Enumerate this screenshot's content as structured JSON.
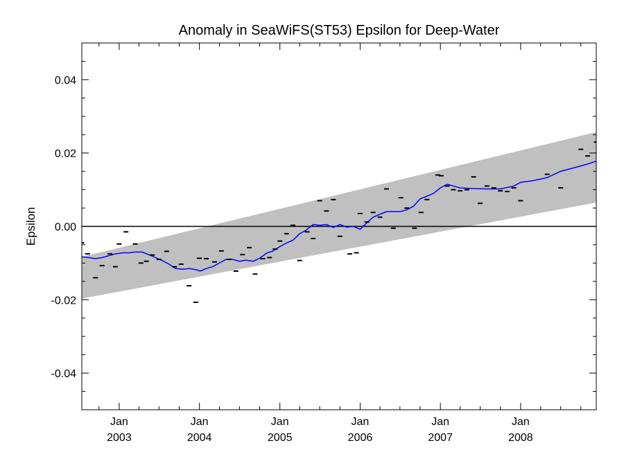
{
  "chart_data": {
    "type": "scatter",
    "title": "Anomaly in SeaWiFS(ST53) Epsilon for Deep-Water",
    "xlabel": "",
    "ylabel": "Epsilon",
    "xlim": [
      "2002-07-15",
      "2008-12-10"
    ],
    "ylim": [
      -0.05,
      0.05
    ],
    "y_ticks": [
      -0.04,
      -0.02,
      0.0,
      0.02,
      0.04
    ],
    "y_tick_labels": [
      "-0.04",
      "-0.02",
      "0.00",
      "0.02",
      "0.04"
    ],
    "x_ticks": [
      {
        "date": "2003-01-01",
        "month": "Jan",
        "year": "2003"
      },
      {
        "date": "2004-01-01",
        "month": "Jan",
        "year": "2004"
      },
      {
        "date": "2005-01-01",
        "month": "Jan",
        "year": "2005"
      },
      {
        "date": "2006-01-01",
        "month": "Jan",
        "year": "2006"
      },
      {
        "date": "2007-01-01",
        "month": "Jan",
        "year": "2007"
      },
      {
        "date": "2008-01-01",
        "month": "Jan",
        "year": "2008"
      }
    ],
    "grid": false,
    "colors": {
      "band": "#c0c0c0",
      "trend": "#0000ff",
      "points": "#000000",
      "zero_line": "#000000"
    },
    "uncertainty_band": {
      "start": {
        "date": "2002-07-15",
        "lower": -0.0197,
        "upper": -0.0083
      },
      "end": {
        "date": "2008-12-10",
        "lower": 0.0065,
        "upper": 0.0257
      }
    },
    "reference_line": {
      "y": 0.0
    },
    "points": [
      {
        "x": "2002-07-15",
        "y": -0.0045
      },
      {
        "x": "2002-08-10",
        "y": -0.0075
      },
      {
        "x": "2002-09-15",
        "y": -0.014
      },
      {
        "x": "2002-10-15",
        "y": -0.0107
      },
      {
        "x": "2002-11-20",
        "y": -0.0075
      },
      {
        "x": "2002-12-15",
        "y": -0.011
      },
      {
        "x": "2003-01-01",
        "y": -0.0048
      },
      {
        "x": "2003-02-01",
        "y": -0.0015
      },
      {
        "x": "2003-03-15",
        "y": -0.0048
      },
      {
        "x": "2003-04-10",
        "y": -0.01
      },
      {
        "x": "2003-05-05",
        "y": -0.0095
      },
      {
        "x": "2003-06-01",
        "y": -0.0078
      },
      {
        "x": "2003-07-01",
        "y": -0.009
      },
      {
        "x": "2003-08-05",
        "y": -0.0068
      },
      {
        "x": "2003-09-10",
        "y": -0.011
      },
      {
        "x": "2003-10-10",
        "y": -0.0103
      },
      {
        "x": "2003-11-15",
        "y": -0.0162
      },
      {
        "x": "2003-12-15",
        "y": -0.0207
      },
      {
        "x": "2004-01-01",
        "y": -0.0087
      },
      {
        "x": "2004-02-01",
        "y": -0.0088
      },
      {
        "x": "2004-03-10",
        "y": -0.0097
      },
      {
        "x": "2004-04-10",
        "y": -0.0067
      },
      {
        "x": "2004-05-15",
        "y": -0.009
      },
      {
        "x": "2004-06-15",
        "y": -0.0122
      },
      {
        "x": "2004-07-15",
        "y": -0.0077
      },
      {
        "x": "2004-08-15",
        "y": -0.0058
      },
      {
        "x": "2004-09-10",
        "y": -0.013
      },
      {
        "x": "2004-10-15",
        "y": -0.0088
      },
      {
        "x": "2004-11-15",
        "y": -0.0085
      },
      {
        "x": "2004-12-10",
        "y": -0.0062
      },
      {
        "x": "2005-01-01",
        "y": -0.004
      },
      {
        "x": "2005-02-01",
        "y": -0.002
      },
      {
        "x": "2005-03-01",
        "y": 0.0003
      },
      {
        "x": "2005-04-01",
        "y": -0.0093
      },
      {
        "x": "2005-05-05",
        "y": -0.0015
      },
      {
        "x": "2005-06-01",
        "y": -0.0033
      },
      {
        "x": "2005-07-01",
        "y": 0.007
      },
      {
        "x": "2005-08-01",
        "y": 0.0042
      },
      {
        "x": "2005-09-01",
        "y": 0.0073
      },
      {
        "x": "2005-10-01",
        "y": -0.0027
      },
      {
        "x": "2005-11-15",
        "y": -0.0075
      },
      {
        "x": "2005-12-15",
        "y": -0.0072
      },
      {
        "x": "2006-01-01",
        "y": 0.0035
      },
      {
        "x": "2006-02-01",
        "y": 0.0012
      },
      {
        "x": "2006-03-01",
        "y": 0.0038
      },
      {
        "x": "2006-04-01",
        "y": 0.0025
      },
      {
        "x": "2006-05-01",
        "y": 0.0102
      },
      {
        "x": "2006-06-01",
        "y": -0.0005
      },
      {
        "x": "2006-07-05",
        "y": 0.0078
      },
      {
        "x": "2006-08-01",
        "y": 0.005
      },
      {
        "x": "2006-09-05",
        "y": -0.0005
      },
      {
        "x": "2006-10-05",
        "y": 0.0038
      },
      {
        "x": "2006-11-01",
        "y": 0.0073
      },
      {
        "x": "2006-12-20",
        "y": 0.014
      },
      {
        "x": "2007-01-05",
        "y": 0.0138
      },
      {
        "x": "2007-02-01",
        "y": 0.011
      },
      {
        "x": "2007-03-01",
        "y": 0.01
      },
      {
        "x": "2007-04-01",
        "y": 0.0097
      },
      {
        "x": "2007-05-01",
        "y": 0.01
      },
      {
        "x": "2007-06-01",
        "y": 0.0135
      },
      {
        "x": "2007-07-01",
        "y": 0.0063
      },
      {
        "x": "2007-08-01",
        "y": 0.011
      },
      {
        "x": "2007-09-01",
        "y": 0.0105
      },
      {
        "x": "2007-10-01",
        "y": 0.0097
      },
      {
        "x": "2007-11-01",
        "y": 0.0095
      },
      {
        "x": "2007-12-01",
        "y": 0.0105
      },
      {
        "x": "2008-01-01",
        "y": 0.007
      },
      {
        "x": "2008-05-01",
        "y": 0.0142
      },
      {
        "x": "2008-07-01",
        "y": 0.0105
      },
      {
        "x": "2008-10-01",
        "y": 0.021
      },
      {
        "x": "2008-11-01",
        "y": 0.0192
      },
      {
        "x": "2008-12-10",
        "y": 0.023
      }
    ],
    "trend_line": [
      {
        "x": "2002-07-15",
        "y": -0.0083
      },
      {
        "x": "2002-08-15",
        "y": -0.0085
      },
      {
        "x": "2002-09-15",
        "y": -0.0088
      },
      {
        "x": "2002-10-15",
        "y": -0.0085
      },
      {
        "x": "2002-11-15",
        "y": -0.008
      },
      {
        "x": "2002-12-15",
        "y": -0.0075
      },
      {
        "x": "2003-01-15",
        "y": -0.0072
      },
      {
        "x": "2003-02-15",
        "y": -0.0072
      },
      {
        "x": "2003-03-15",
        "y": -0.007
      },
      {
        "x": "2003-04-15",
        "y": -0.007
      },
      {
        "x": "2003-05-15",
        "y": -0.0077
      },
      {
        "x": "2003-06-15",
        "y": -0.0085
      },
      {
        "x": "2003-07-15",
        "y": -0.0093
      },
      {
        "x": "2003-08-15",
        "y": -0.0103
      },
      {
        "x": "2003-09-15",
        "y": -0.0115
      },
      {
        "x": "2003-10-15",
        "y": -0.0117
      },
      {
        "x": "2003-11-15",
        "y": -0.0115
      },
      {
        "x": "2003-12-15",
        "y": -0.0118
      },
      {
        "x": "2004-01-05",
        "y": -0.0122
      },
      {
        "x": "2004-02-01",
        "y": -0.0115
      },
      {
        "x": "2004-03-01",
        "y": -0.011
      },
      {
        "x": "2004-04-01",
        "y": -0.01
      },
      {
        "x": "2004-05-01",
        "y": -0.009
      },
      {
        "x": "2004-06-01",
        "y": -0.009
      },
      {
        "x": "2004-07-01",
        "y": -0.0095
      },
      {
        "x": "2004-08-01",
        "y": -0.0092
      },
      {
        "x": "2004-09-01",
        "y": -0.0095
      },
      {
        "x": "2004-10-01",
        "y": -0.0087
      },
      {
        "x": "2004-11-01",
        "y": -0.0073
      },
      {
        "x": "2004-12-01",
        "y": -0.0067
      },
      {
        "x": "2005-01-01",
        "y": -0.0055
      },
      {
        "x": "2005-02-01",
        "y": -0.0045
      },
      {
        "x": "2005-03-01",
        "y": -0.0038
      },
      {
        "x": "2005-04-01",
        "y": -0.002
      },
      {
        "x": "2005-05-01",
        "y": -0.001
      },
      {
        "x": "2005-06-01",
        "y": 0.0005
      },
      {
        "x": "2005-07-01",
        "y": 0.0003
      },
      {
        "x": "2005-08-01",
        "y": 0.0005
      },
      {
        "x": "2005-09-01",
        "y": -0.0003
      },
      {
        "x": "2005-10-01",
        "y": 0.0005
      },
      {
        "x": "2005-11-01",
        "y": -0.0002
      },
      {
        "x": "2005-12-01",
        "y": 0.0
      },
      {
        "x": "2006-01-01",
        "y": -0.0008
      },
      {
        "x": "2006-02-01",
        "y": 0.001
      },
      {
        "x": "2006-03-01",
        "y": 0.0025
      },
      {
        "x": "2006-04-01",
        "y": 0.0033
      },
      {
        "x": "2006-05-01",
        "y": 0.004
      },
      {
        "x": "2006-06-01",
        "y": 0.004
      },
      {
        "x": "2006-07-01",
        "y": 0.004
      },
      {
        "x": "2006-08-01",
        "y": 0.0045
      },
      {
        "x": "2006-09-01",
        "y": 0.0055
      },
      {
        "x": "2006-10-01",
        "y": 0.0075
      },
      {
        "x": "2006-11-01",
        "y": 0.0082
      },
      {
        "x": "2006-12-01",
        "y": 0.009
      },
      {
        "x": "2007-01-01",
        "y": 0.0105
      },
      {
        "x": "2007-02-01",
        "y": 0.0115
      },
      {
        "x": "2007-03-01",
        "y": 0.011
      },
      {
        "x": "2007-04-01",
        "y": 0.0105
      },
      {
        "x": "2007-06-01",
        "y": 0.0103
      },
      {
        "x": "2007-08-01",
        "y": 0.0102
      },
      {
        "x": "2007-10-01",
        "y": 0.0102
      },
      {
        "x": "2007-12-01",
        "y": 0.011
      },
      {
        "x": "2008-01-01",
        "y": 0.012
      },
      {
        "x": "2008-03-01",
        "y": 0.0125
      },
      {
        "x": "2008-05-01",
        "y": 0.0133
      },
      {
        "x": "2008-07-01",
        "y": 0.015
      },
      {
        "x": "2008-09-01",
        "y": 0.016
      },
      {
        "x": "2008-11-01",
        "y": 0.017
      },
      {
        "x": "2008-12-10",
        "y": 0.0178
      }
    ]
  }
}
